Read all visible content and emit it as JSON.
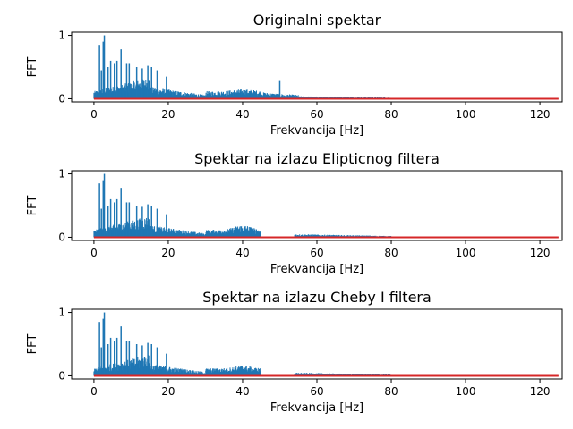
{
  "chart_data": [
    {
      "type": "bar",
      "title": "Originalni spektar",
      "xlabel": "Frekvancija [Hz]",
      "ylabel": "FFT",
      "xlim": [
        -6,
        126
      ],
      "ylim": [
        -0.05,
        1.05
      ],
      "xticks": [
        0,
        20,
        40,
        60,
        80,
        100,
        120
      ],
      "yticks": [
        0,
        1
      ],
      "grid": false,
      "stem_color": "#1f77b4",
      "baseline_color": "#d62728",
      "peaks": [
        {
          "x": 1.5,
          "y": 0.85
        },
        {
          "x": 2.0,
          "y": 0.45
        },
        {
          "x": 2.5,
          "y": 0.9
        },
        {
          "x": 2.8,
          "y": 1.0
        },
        {
          "x": 3.8,
          "y": 0.5
        },
        {
          "x": 4.5,
          "y": 0.6
        },
        {
          "x": 5.5,
          "y": 0.55
        },
        {
          "x": 6.2,
          "y": 0.6
        },
        {
          "x": 7.3,
          "y": 0.78
        },
        {
          "x": 8.8,
          "y": 0.55
        },
        {
          "x": 9.5,
          "y": 0.55
        },
        {
          "x": 11.5,
          "y": 0.5
        },
        {
          "x": 13.0,
          "y": 0.48
        },
        {
          "x": 14.5,
          "y": 0.52
        },
        {
          "x": 15.5,
          "y": 0.5
        },
        {
          "x": 17.0,
          "y": 0.45
        },
        {
          "x": 19.5,
          "y": 0.35
        },
        {
          "x": 50.0,
          "y": 0.28
        }
      ],
      "segments": [
        {
          "from": 0,
          "to": 30,
          "level": [
            0.32,
            0.06
          ]
        },
        {
          "from": 30,
          "to": 45,
          "level": [
            0.12,
            0.12
          ]
        },
        {
          "from": 45,
          "to": 55,
          "level": [
            0.1,
            0.06
          ]
        },
        {
          "from": 55,
          "to": 80,
          "level": [
            0.04,
            0.02
          ]
        },
        {
          "from": 80,
          "to": 125,
          "level": [
            0.01,
            0.005
          ]
        }
      ],
      "bumps": [
        {
          "center": 40,
          "width": 4,
          "height": 0.03
        }
      ]
    },
    {
      "type": "bar",
      "title": "Spektar na izlazu Elipticnog filtera",
      "xlabel": "Frekvancija [Hz]",
      "ylabel": "FFT",
      "xlim": [
        -6,
        126
      ],
      "ylim": [
        -0.05,
        1.05
      ],
      "xticks": [
        0,
        20,
        40,
        60,
        80,
        100,
        120
      ],
      "yticks": [
        0,
        1
      ],
      "grid": false,
      "stem_color": "#1f77b4",
      "baseline_color": "#d62728",
      "peaks": [
        {
          "x": 1.5,
          "y": 0.85
        },
        {
          "x": 2.0,
          "y": 0.45
        },
        {
          "x": 2.5,
          "y": 0.9
        },
        {
          "x": 2.8,
          "y": 1.0
        },
        {
          "x": 3.8,
          "y": 0.5
        },
        {
          "x": 4.5,
          "y": 0.6
        },
        {
          "x": 5.5,
          "y": 0.55
        },
        {
          "x": 6.2,
          "y": 0.6
        },
        {
          "x": 7.3,
          "y": 0.78
        },
        {
          "x": 8.8,
          "y": 0.55
        },
        {
          "x": 9.5,
          "y": 0.55
        },
        {
          "x": 11.5,
          "y": 0.5
        },
        {
          "x": 13.0,
          "y": 0.48
        },
        {
          "x": 14.5,
          "y": 0.52
        },
        {
          "x": 15.5,
          "y": 0.5
        },
        {
          "x": 17.0,
          "y": 0.45
        },
        {
          "x": 19.5,
          "y": 0.35
        }
      ],
      "segments": [
        {
          "from": 0,
          "to": 30,
          "level": [
            0.32,
            0.06
          ]
        },
        {
          "from": 30,
          "to": 45,
          "level": [
            0.12,
            0.12
          ]
        },
        {
          "from": 45,
          "to": 54,
          "level": [
            0.0,
            0.0
          ]
        },
        {
          "from": 54,
          "to": 80,
          "level": [
            0.05,
            0.02
          ]
        },
        {
          "from": 80,
          "to": 125,
          "level": [
            0.01,
            0.005
          ]
        }
      ],
      "bumps": [
        {
          "center": 40,
          "width": 3,
          "height": 0.08
        }
      ]
    },
    {
      "type": "bar",
      "title": "Spektar na izlazu Cheby I filtera",
      "xlabel": "Frekvancija [Hz]",
      "ylabel": "FFT",
      "xlim": [
        -6,
        126
      ],
      "ylim": [
        -0.05,
        1.05
      ],
      "xticks": [
        0,
        20,
        40,
        60,
        80,
        100,
        120
      ],
      "yticks": [
        0,
        1
      ],
      "grid": false,
      "stem_color": "#1f77b4",
      "baseline_color": "#d62728",
      "peaks": [
        {
          "x": 1.5,
          "y": 0.85
        },
        {
          "x": 2.0,
          "y": 0.45
        },
        {
          "x": 2.5,
          "y": 0.9
        },
        {
          "x": 2.8,
          "y": 1.0
        },
        {
          "x": 3.8,
          "y": 0.5
        },
        {
          "x": 4.5,
          "y": 0.6
        },
        {
          "x": 5.5,
          "y": 0.55
        },
        {
          "x": 6.2,
          "y": 0.6
        },
        {
          "x": 7.3,
          "y": 0.78
        },
        {
          "x": 8.8,
          "y": 0.55
        },
        {
          "x": 9.5,
          "y": 0.55
        },
        {
          "x": 11.5,
          "y": 0.5
        },
        {
          "x": 13.0,
          "y": 0.48
        },
        {
          "x": 14.5,
          "y": 0.52
        },
        {
          "x": 15.5,
          "y": 0.5
        },
        {
          "x": 17.0,
          "y": 0.45
        },
        {
          "x": 19.5,
          "y": 0.35
        }
      ],
      "segments": [
        {
          "from": 0,
          "to": 30,
          "level": [
            0.32,
            0.06
          ]
        },
        {
          "from": 30,
          "to": 45,
          "level": [
            0.12,
            0.12
          ]
        },
        {
          "from": 45,
          "to": 54,
          "level": [
            0.0,
            0.0
          ]
        },
        {
          "from": 54,
          "to": 80,
          "level": [
            0.05,
            0.02
          ]
        },
        {
          "from": 80,
          "to": 125,
          "level": [
            0.01,
            0.005
          ]
        }
      ],
      "bumps": [
        {
          "center": 40,
          "width": 3,
          "height": 0.05
        }
      ]
    }
  ]
}
